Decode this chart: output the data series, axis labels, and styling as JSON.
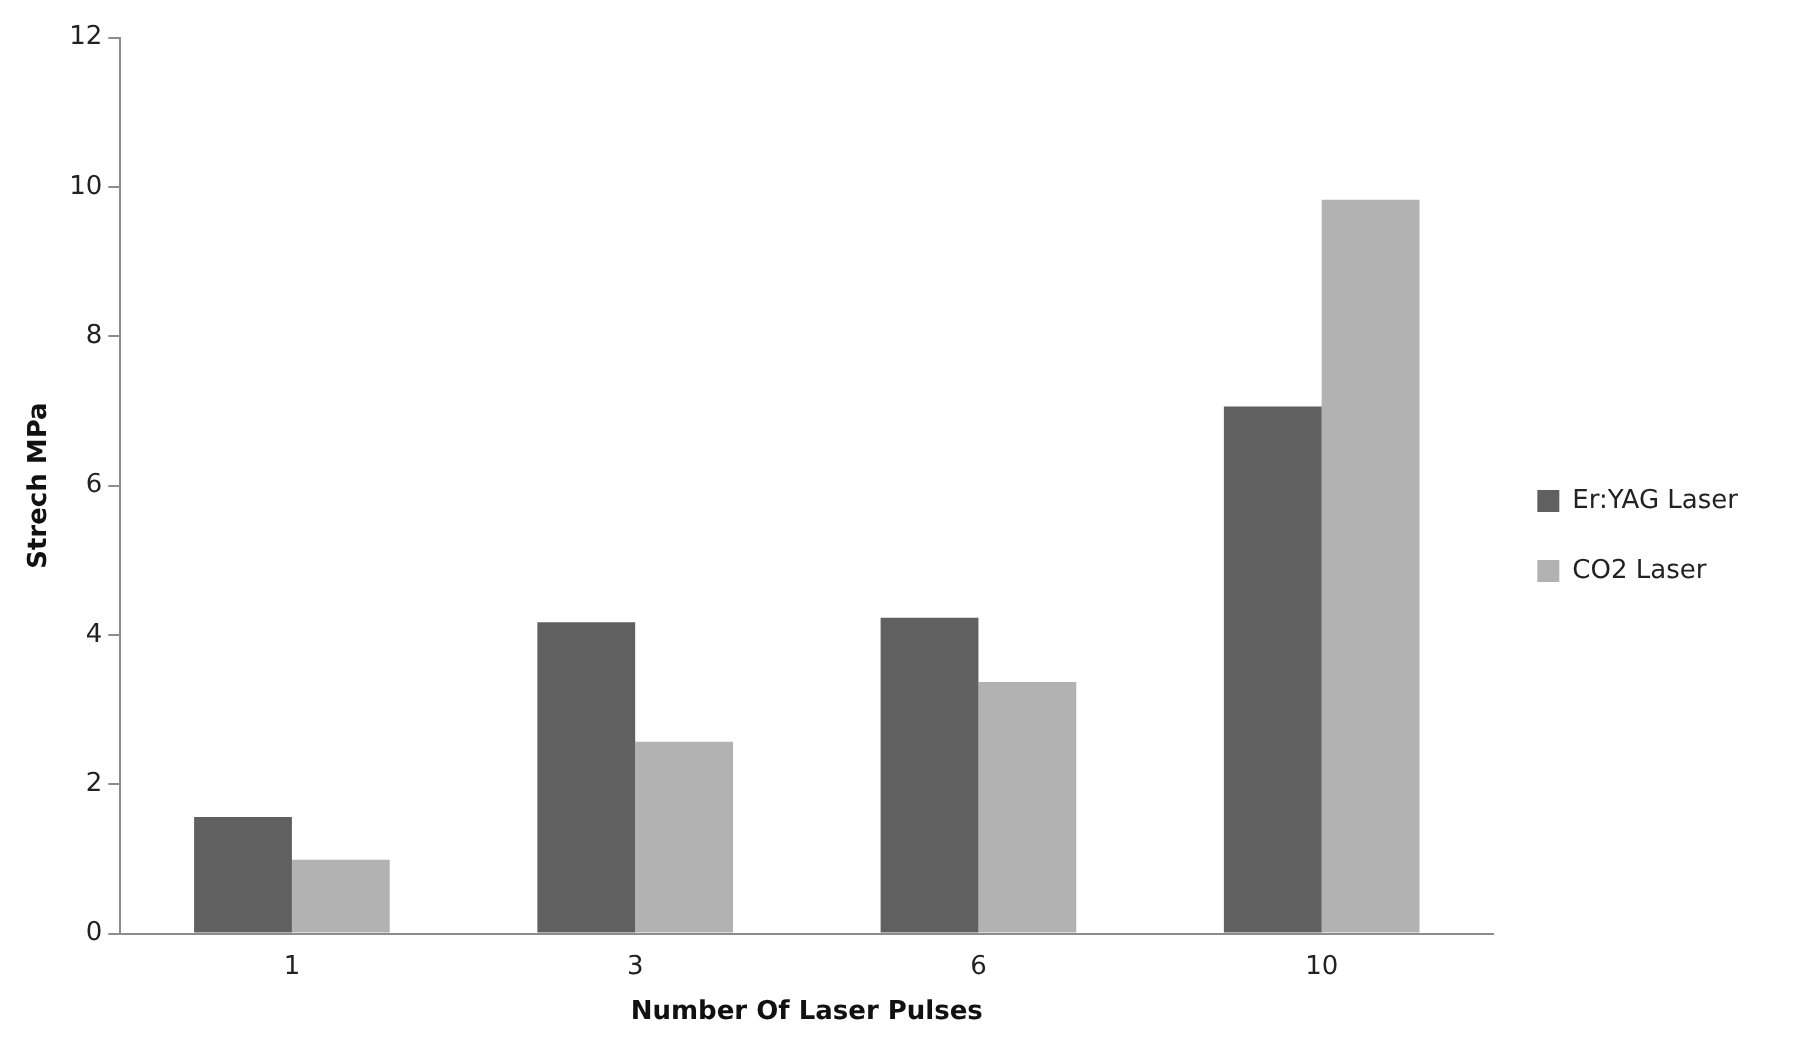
{
  "chart_data": {
    "type": "bar",
    "xlabel": "Number Of Laser Pulses",
    "ylabel": "Strech MPa",
    "categories": [
      "1",
      "3",
      "6",
      "10"
    ],
    "series": [
      {
        "name": "Er:YAG Laser",
        "color": "#606060",
        "values": [
          1.56,
          4.17,
          4.23,
          7.06
        ]
      },
      {
        "name": "CO2 Laser",
        "color": "#b2b2b2",
        "values": [
          0.99,
          2.57,
          3.37,
          9.83
        ]
      }
    ],
    "ylim": [
      0,
      12
    ],
    "yticks": [
      0,
      2,
      4,
      6,
      8,
      10,
      12
    ],
    "grid": false,
    "legend": "right"
  }
}
